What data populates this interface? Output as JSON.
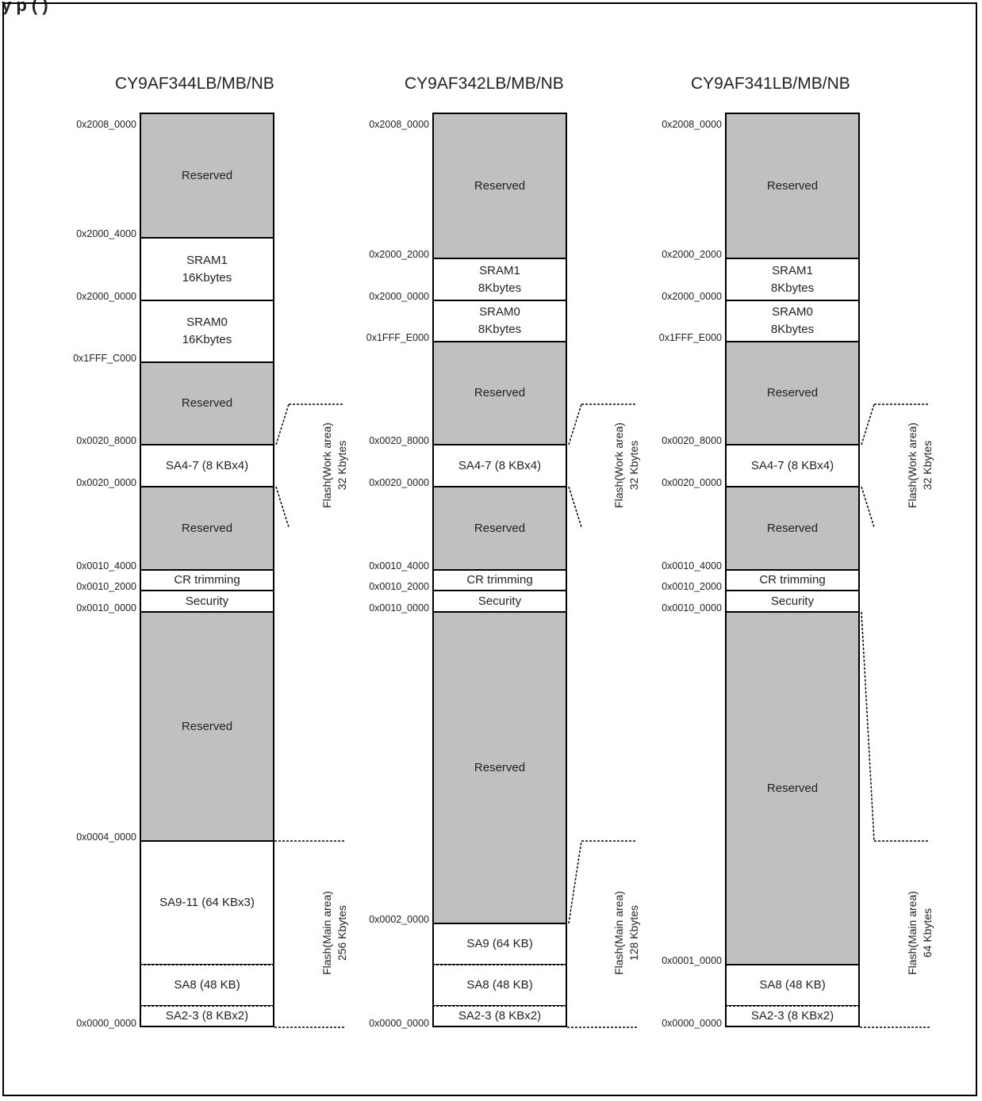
{
  "caption": "y p ( )",
  "columns": [
    {
      "title": "CY9AF344LB/MB/NB",
      "blocks": [
        {
          "lines": [
            "Reserved"
          ],
          "type": "reserved"
        },
        {
          "lines": [
            "SRAM1",
            "16Kbytes"
          ],
          "type": "free"
        },
        {
          "lines": [
            "SRAM0",
            "16Kbytes"
          ],
          "type": "free"
        },
        {
          "lines": [
            "Reserved"
          ],
          "type": "reserved"
        },
        {
          "lines": [
            "SA4-7 (8 KBx4)"
          ],
          "type": "free"
        },
        {
          "lines": [
            "Reserved"
          ],
          "type": "reserved"
        },
        {
          "lines": [
            "CR trimming"
          ],
          "type": "free"
        },
        {
          "lines": [
            "Security"
          ],
          "type": "free"
        },
        {
          "lines": [
            "Reserved"
          ],
          "type": "reserved"
        },
        {
          "lines": [
            "SA9-11 (64 KBx3)"
          ],
          "type": "free"
        },
        {
          "lines": [
            "SA8 (48 KB)"
          ],
          "type": "free"
        },
        {
          "lines": [
            "SA2-3 (8 KBx2)"
          ],
          "type": "free"
        }
      ],
      "addresses": [
        "0x2008_0000",
        "0x2000_4000",
        "0x2000_0000",
        "0x1FFF_C000",
        "0x0020_8000",
        "0x0020_0000",
        "0x0010_4000",
        "0x0010_2000",
        "0x0010_0000",
        "0x0004_0000",
        "0x0000_0000"
      ],
      "work_label": [
        "Flash(Work area)",
        "32 Kbytes"
      ],
      "main_label": [
        "Flash(Main area)",
        "256 Kbytes"
      ]
    },
    {
      "title": "CY9AF342LB/MB/NB",
      "blocks": [
        {
          "lines": [
            "Reserved"
          ],
          "type": "reserved"
        },
        {
          "lines": [
            "SRAM1",
            "8Kbytes"
          ],
          "type": "free"
        },
        {
          "lines": [
            "SRAM0",
            "8Kbytes"
          ],
          "type": "free"
        },
        {
          "lines": [
            "Reserved"
          ],
          "type": "reserved"
        },
        {
          "lines": [
            "SA4-7 (8 KBx4)"
          ],
          "type": "free"
        },
        {
          "lines": [
            "Reserved"
          ],
          "type": "reserved"
        },
        {
          "lines": [
            "CR trimming"
          ],
          "type": "free"
        },
        {
          "lines": [
            "Security"
          ],
          "type": "free"
        },
        {
          "lines": [
            "Reserved"
          ],
          "type": "reserved"
        },
        {
          "lines": [
            "SA9 (64 KB)"
          ],
          "type": "free"
        },
        {
          "lines": [
            "SA8 (48 KB)"
          ],
          "type": "free"
        },
        {
          "lines": [
            "SA2-3 (8 KBx2)"
          ],
          "type": "free"
        }
      ],
      "addresses": [
        "0x2008_0000",
        "0x2000_2000",
        "0x2000_0000",
        "0x1FFF_E000",
        "0x0020_8000",
        "0x0020_0000",
        "0x0010_4000",
        "0x0010_2000",
        "0x0010_0000",
        "0x0002_0000",
        "0x0000_0000"
      ],
      "work_label": [
        "Flash(Work area)",
        "32 Kbytes"
      ],
      "main_label": [
        "Flash(Main area)",
        "128 Kbytes"
      ]
    },
    {
      "title": "CY9AF341LB/MB/NB",
      "blocks": [
        {
          "lines": [
            "Reserved"
          ],
          "type": "reserved"
        },
        {
          "lines": [
            "SRAM1",
            "8Kbytes"
          ],
          "type": "free"
        },
        {
          "lines": [
            "SRAM0",
            "8Kbytes"
          ],
          "type": "free"
        },
        {
          "lines": [
            "Reserved"
          ],
          "type": "reserved"
        },
        {
          "lines": [
            "SA4-7 (8 KBx4)"
          ],
          "type": "free"
        },
        {
          "lines": [
            "Reserved"
          ],
          "type": "reserved"
        },
        {
          "lines": [
            "CR trimming"
          ],
          "type": "free"
        },
        {
          "lines": [
            "Security"
          ],
          "type": "free"
        },
        {
          "lines": [
            "Reserved"
          ],
          "type": "reserved"
        },
        {
          "lines": [
            "SA8 (48 KB)"
          ],
          "type": "free"
        },
        {
          "lines": [
            "SA2-3 (8 KBx2)"
          ],
          "type": "free"
        }
      ],
      "addresses": [
        "0x2008_0000",
        "0x2000_2000",
        "0x2000_0000",
        "0x1FFF_E000",
        "0x0020_8000",
        "0x0020_0000",
        "0x0010_4000",
        "0x0010_2000",
        "0x0010_0000",
        "0x0001_0000",
        "0x0000_0000"
      ],
      "work_label": [
        "Flash(Work area)",
        "32 Kbytes"
      ],
      "main_label": [
        "Flash(Main area)",
        "64 Kbytes"
      ]
    }
  ]
}
